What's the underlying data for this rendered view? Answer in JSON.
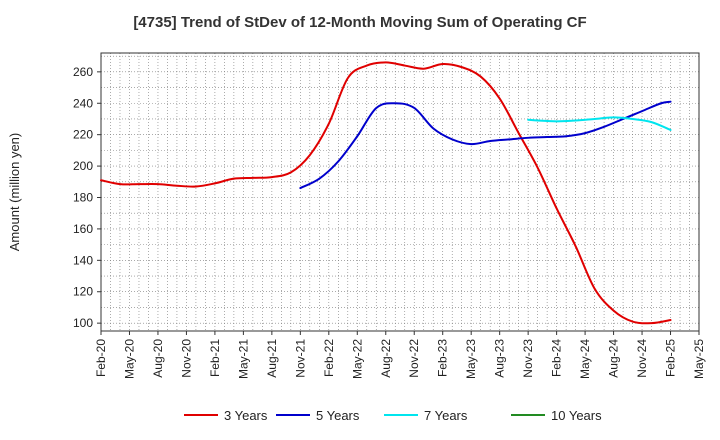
{
  "chart_data": {
    "type": "line",
    "title": "[4735]  Trend of StDev of 12-Month Moving Sum of Operating CF",
    "xlabel": "",
    "ylabel": "Amount (million yen)",
    "ylim": [
      95,
      272
    ],
    "yticks": [
      100,
      120,
      140,
      160,
      180,
      200,
      220,
      240,
      260
    ],
    "x_tick_labels": [
      "Feb-20",
      "May-20",
      "Aug-20",
      "Nov-20",
      "Feb-21",
      "May-21",
      "Aug-21",
      "Nov-21",
      "Feb-22",
      "May-22",
      "Aug-22",
      "Nov-22",
      "Feb-23",
      "May-23",
      "Aug-23",
      "Nov-23",
      "Feb-24",
      "May-24",
      "Aug-24",
      "Nov-24",
      "Feb-25",
      "May-25"
    ],
    "x_index_note": "x values are month offsets from Feb-20 (0 = Feb-20, 63 = May-25)",
    "x_range": [
      0,
      63
    ],
    "grid": true,
    "legend_position": "bottom",
    "series": [
      {
        "name": "3 Years",
        "color": "#e00000",
        "x": [
          0,
          2,
          4,
          6,
          8,
          10,
          12,
          14,
          16,
          18,
          20,
          22,
          24,
          26,
          28,
          30,
          32,
          34,
          36,
          38,
          40,
          42,
          44,
          46,
          48,
          50,
          52,
          54,
          56,
          58,
          60
        ],
        "values": [
          191,
          188.5,
          188.5,
          188.5,
          187.5,
          187,
          189,
          192,
          192.5,
          193,
          196,
          207,
          227,
          256,
          264,
          266,
          264,
          262,
          265,
          263,
          257,
          243,
          221,
          199,
          173,
          149,
          122,
          108,
          101,
          100,
          102
        ]
      },
      {
        "name": "5 Years",
        "color": "#0000cc",
        "x": [
          21,
          23,
          25,
          27,
          29,
          31,
          33,
          35,
          37,
          39,
          41,
          43,
          45,
          47,
          49,
          51,
          53,
          55,
          57,
          59,
          60
        ],
        "values": [
          186,
          192,
          203,
          219,
          237,
          240,
          237,
          224,
          217,
          214,
          216,
          217,
          218,
          218.5,
          219,
          221,
          225,
          230,
          235,
          240,
          241
        ]
      },
      {
        "name": "7 Years",
        "color": "#00e5ee",
        "x": [
          45,
          46,
          48,
          50,
          52,
          54,
          56,
          58,
          60
        ],
        "values": [
          229.5,
          229,
          228.5,
          229,
          230,
          231,
          230,
          228,
          223
        ]
      },
      {
        "name": "10 Years",
        "color": "#228b22",
        "x": [],
        "values": []
      }
    ]
  }
}
